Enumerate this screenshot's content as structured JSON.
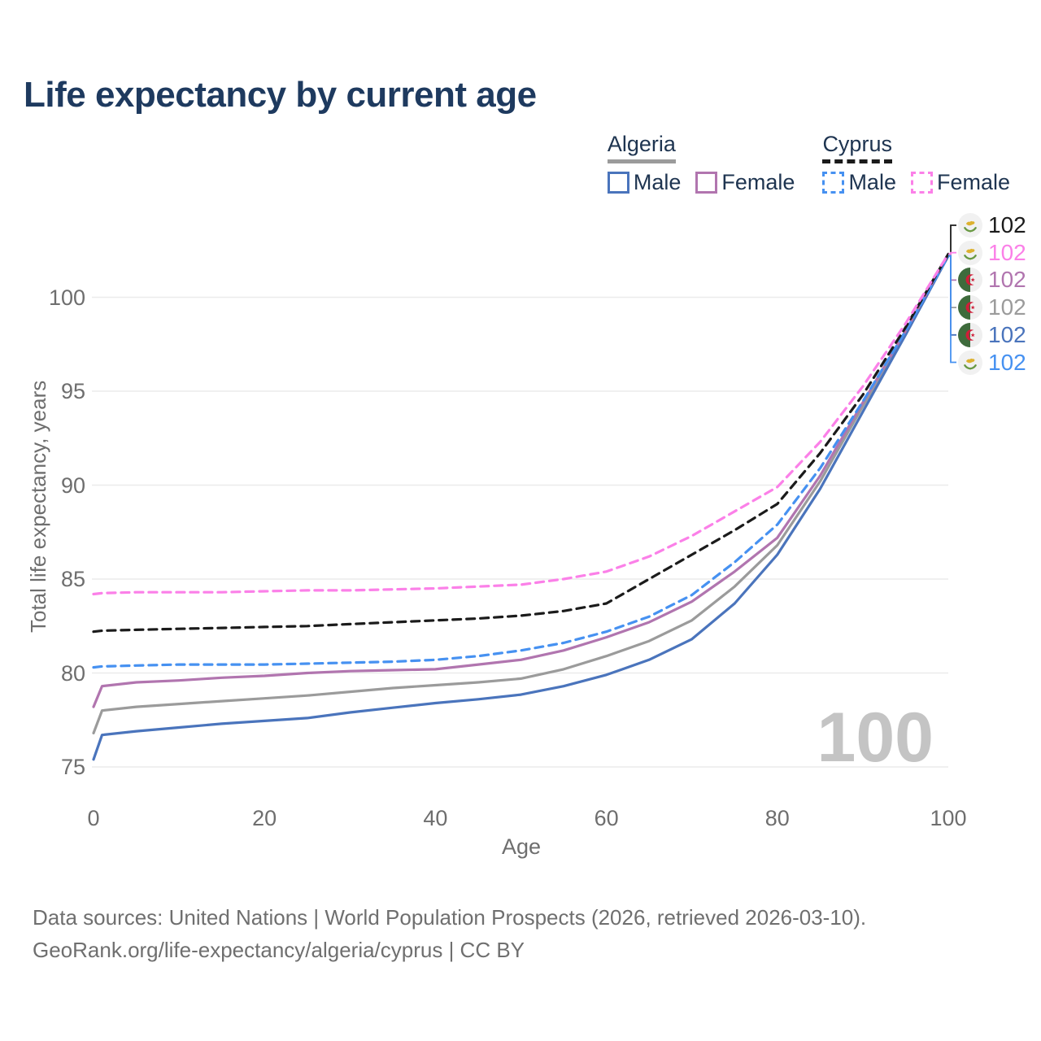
{
  "title": "Life expectancy by current age",
  "watermark": "100",
  "legend": {
    "groups": [
      {
        "label": "Algeria",
        "underline_style": "solid",
        "underline_color": "#9b9b9b",
        "items": [
          {
            "label": "Male",
            "color": "#4a74bc",
            "dashed": false
          },
          {
            "label": "Female",
            "color": "#b175af",
            "dashed": false
          }
        ]
      },
      {
        "label": "Cyprus",
        "underline_style": "dashed",
        "underline_color": "#1b1b1b",
        "items": [
          {
            "label": "Male",
            "color": "#4691f1",
            "dashed": true
          },
          {
            "label": "Female",
            "color": "#fb80e8",
            "dashed": true
          }
        ]
      }
    ]
  },
  "chart_data": {
    "type": "line",
    "title": "Life expectancy by current age",
    "xlabel": "Age",
    "ylabel": "Total life expectancy, years",
    "x_ticks": [
      0,
      20,
      40,
      60,
      80,
      100
    ],
    "y_ticks": [
      75,
      80,
      85,
      90,
      95,
      100
    ],
    "xlim": [
      0,
      100
    ],
    "ylim": [
      75,
      102.5
    ],
    "grid": "horizontal",
    "legend_position": "top-right",
    "x": [
      0,
      1,
      5,
      10,
      15,
      20,
      25,
      30,
      35,
      40,
      45,
      50,
      55,
      60,
      65,
      70,
      75,
      80,
      85,
      90,
      95,
      100
    ],
    "series": [
      {
        "id": "algeria-total",
        "name": "Algeria",
        "country": "Algeria",
        "sex": "Total",
        "color": "#9b9b9b",
        "dashed": false,
        "end_label": "102",
        "values": [
          76.8,
          78.0,
          78.2,
          78.35,
          78.5,
          78.65,
          78.8,
          79.0,
          79.2,
          79.35,
          79.5,
          79.7,
          80.2,
          80.9,
          81.7,
          82.8,
          84.6,
          86.8,
          90.2,
          94.2,
          98.1,
          102.2
        ]
      },
      {
        "id": "algeria-male",
        "name": "Male",
        "country": "Algeria",
        "sex": "Male",
        "color": "#4a74bc",
        "dashed": false,
        "end_label": "102",
        "values": [
          75.4,
          76.7,
          76.9,
          77.1,
          77.3,
          77.45,
          77.6,
          77.9,
          78.15,
          78.4,
          78.6,
          78.85,
          79.3,
          79.9,
          80.7,
          81.8,
          83.7,
          86.3,
          89.8,
          93.9,
          98.0,
          102.2
        ]
      },
      {
        "id": "algeria-female",
        "name": "Female",
        "country": "Algeria",
        "sex": "Female",
        "color": "#b175af",
        "dashed": false,
        "end_label": "102",
        "values": [
          78.2,
          79.3,
          79.5,
          79.6,
          79.75,
          79.85,
          80.0,
          80.1,
          80.15,
          80.2,
          80.45,
          80.7,
          81.2,
          81.9,
          82.7,
          83.8,
          85.4,
          87.2,
          90.5,
          94.4,
          98.2,
          102.3
        ]
      },
      {
        "id": "cyprus-male",
        "name": "Male",
        "country": "Cyprus",
        "sex": "Male",
        "color": "#4691f1",
        "dashed": true,
        "end_label": "102",
        "values": [
          80.3,
          80.35,
          80.4,
          80.45,
          80.45,
          80.45,
          80.5,
          80.55,
          80.6,
          80.7,
          80.9,
          81.2,
          81.6,
          82.2,
          83.0,
          84.15,
          85.9,
          87.9,
          90.9,
          94.45,
          98.2,
          102.2
        ]
      },
      {
        "id": "cyprus-total",
        "name": "Cyprus",
        "country": "Cyprus",
        "sex": "Total",
        "color": "#1b1b1b",
        "dashed": true,
        "end_label": "102",
        "values": [
          82.2,
          82.25,
          82.3,
          82.35,
          82.4,
          82.45,
          82.5,
          82.6,
          82.7,
          82.8,
          82.9,
          83.05,
          83.3,
          83.7,
          85.0,
          86.3,
          87.6,
          89.0,
          91.7,
          94.8,
          98.4,
          102.3
        ]
      },
      {
        "id": "cyprus-female",
        "name": "Female",
        "country": "Cyprus",
        "sex": "Female",
        "color": "#fb80e8",
        "dashed": true,
        "end_label": "102",
        "values": [
          84.2,
          84.25,
          84.3,
          84.3,
          84.3,
          84.35,
          84.4,
          84.4,
          84.45,
          84.5,
          84.6,
          84.7,
          85.0,
          85.4,
          86.2,
          87.3,
          88.6,
          89.9,
          92.3,
          95.25,
          98.6,
          102.3
        ]
      }
    ]
  },
  "end_labels": [
    {
      "series": "cyprus-total",
      "flag": "cyprus-flag-icon",
      "value": "102",
      "color": "#1b1b1b"
    },
    {
      "series": "cyprus-female",
      "flag": "cyprus-flag-icon",
      "value": "102",
      "color": "#fb80e8"
    },
    {
      "series": "algeria-female",
      "flag": "algeria-flag-icon",
      "value": "102",
      "color": "#b175af"
    },
    {
      "series": "algeria-total",
      "flag": "algeria-flag-icon",
      "value": "102",
      "color": "#9b9b9b"
    },
    {
      "series": "algeria-male",
      "flag": "algeria-flag-icon",
      "value": "102",
      "color": "#4a74bc"
    },
    {
      "series": "cyprus-male",
      "flag": "cyprus-flag-icon",
      "value": "102",
      "color": "#4691f1"
    }
  ],
  "footer": {
    "line1": "Data sources: United Nations | World Population Prospects (2026, retrieved 2026-03-10).",
    "line2": "GeoRank.org/life-expectancy/algeria/cyprus | CC BY"
  }
}
